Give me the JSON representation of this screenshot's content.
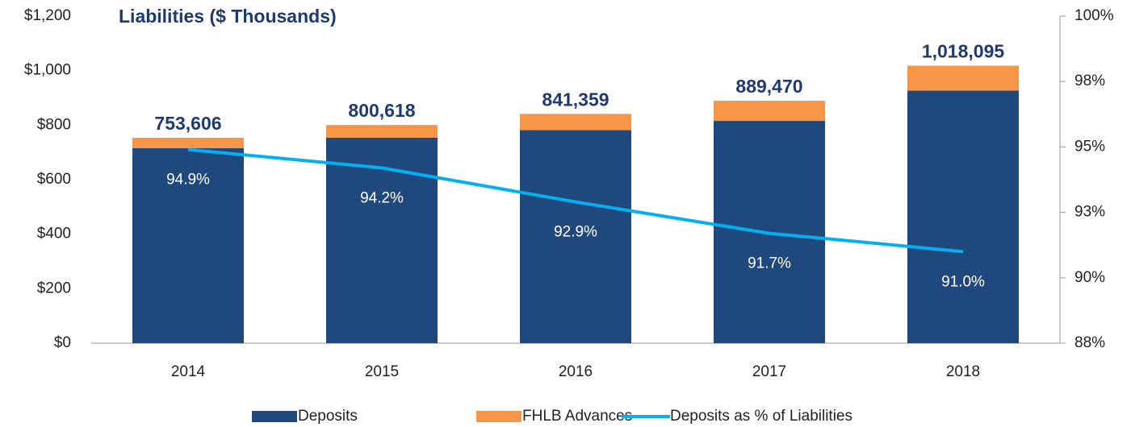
{
  "chart_data": {
    "type": "bar",
    "title": "Liabilities ($ Thousands)",
    "categories": [
      "2014",
      "2015",
      "2016",
      "2017",
      "2018"
    ],
    "series": [
      {
        "name": "Deposits",
        "color": "#1f497d",
        "values": [
          715.2,
          754.2,
          781.6,
          815.6,
          926.5
        ]
      },
      {
        "name": "FHLB Advances",
        "color": "#f79646",
        "values": [
          38.4,
          46.4,
          59.8,
          73.8,
          91.6
        ]
      },
      {
        "name": "Deposits as % of Liabilities",
        "color": "#00b0f0",
        "axis": "y2",
        "type": "line",
        "values": [
          94.9,
          94.2,
          92.9,
          91.7,
          91.0
        ],
        "value_labels": [
          "94.9%",
          "94.2%",
          "92.9%",
          "91.7%",
          "91.0%"
        ]
      }
    ],
    "totals": {
      "values": [
        753.606,
        800.618,
        841.359,
        889.47,
        1018.095
      ],
      "value_labels": [
        "753,606",
        "800,618",
        "841,359",
        "889,470",
        "1,018,095"
      ]
    },
    "ylim": [
      0,
      1200
    ],
    "yticks": [
      {
        "value": 0,
        "label": "$0"
      },
      {
        "value": 200,
        "label": "$200"
      },
      {
        "value": 400,
        "label": "$400"
      },
      {
        "value": 600,
        "label": "$600"
      },
      {
        "value": 800,
        "label": "$800"
      },
      {
        "value": 1000,
        "label": "$1,000"
      },
      {
        "value": 1200,
        "label": "$1,200"
      }
    ],
    "y2lim": [
      87.5,
      100
    ],
    "y2ticks": [
      {
        "value": 87.5,
        "label": "88%"
      },
      {
        "value": 90,
        "label": "90%"
      },
      {
        "value": 92.5,
        "label": "93%"
      },
      {
        "value": 95,
        "label": "95%"
      },
      {
        "value": 97.5,
        "label": "98%"
      },
      {
        "value": 100,
        "label": "100%"
      }
    ],
    "legend": "bottom"
  }
}
